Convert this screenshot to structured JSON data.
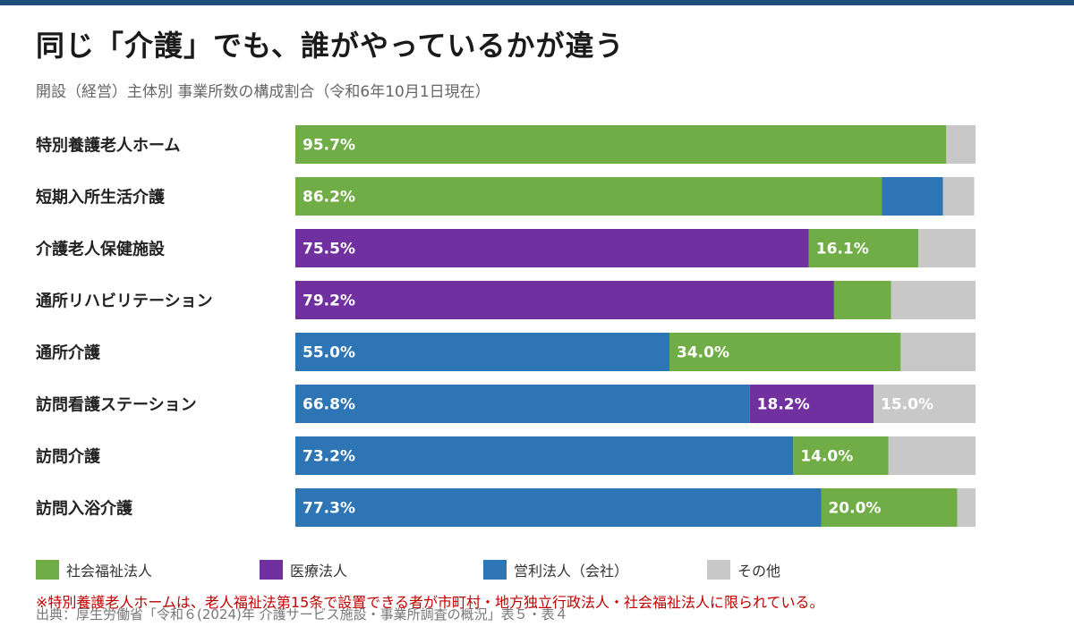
{
  "title": "同じ「介護」でも、誰がやっているかが違う",
  "subtitle": "開設（経営）主体別 事業所数の構成割合（令和6年10月1日現在）",
  "colors": {
    "social_welfare": "#70ad47",
    "medical": "#7030a0",
    "company": "#2e75b6",
    "other": "#c8c8c8",
    "topbar": "#1f4e79",
    "note": "#c00000"
  },
  "legend": [
    {
      "key": "social_welfare",
      "label": "社会福祉法人",
      "color": "#70ad47"
    },
    {
      "key": "medical",
      "label": "医療法人",
      "color": "#7030a0"
    },
    {
      "key": "company",
      "label": "営利法人（会社）",
      "color": "#2e75b6"
    },
    {
      "key": "other",
      "label": "その他",
      "color": "#c8c8c8"
    }
  ],
  "chart_data": {
    "type": "bar",
    "orientation": "horizontal",
    "stacked": true,
    "xlim": [
      0,
      100
    ],
    "unit": "%",
    "categories": [
      "特別養護老人ホーム",
      "短期入所生活介護",
      "介護老人保健施設",
      "通所リハビリテーション",
      "通所介護",
      "訪問看護ステーション",
      "訪問介護",
      "訪問入浴介護"
    ],
    "rows": [
      {
        "segments": [
          {
            "series": "社会福祉法人",
            "value": 95.7,
            "label": "95.7%"
          },
          {
            "series": "その他",
            "value": 4.3,
            "label": ""
          }
        ]
      },
      {
        "segments": [
          {
            "series": "社会福祉法人",
            "value": 86.2,
            "label": "86.2%"
          },
          {
            "series": "営利法人（会社）",
            "value": 9.0,
            "label": ""
          },
          {
            "series": "その他",
            "value": 4.6,
            "label": ""
          }
        ]
      },
      {
        "segments": [
          {
            "series": "医療法人",
            "value": 75.5,
            "label": "75.5%"
          },
          {
            "series": "社会福祉法人",
            "value": 16.1,
            "label": "16.1%"
          },
          {
            "series": "その他",
            "value": 8.4,
            "label": ""
          }
        ]
      },
      {
        "segments": [
          {
            "series": "医療法人",
            "value": 79.2,
            "label": "79.2%"
          },
          {
            "series": "社会福祉法人",
            "value": 8.4,
            "label": ""
          },
          {
            "series": "その他",
            "value": 12.4,
            "label": ""
          }
        ]
      },
      {
        "segments": [
          {
            "series": "営利法人（会社）",
            "value": 55.0,
            "label": "55.0%"
          },
          {
            "series": "社会福祉法人",
            "value": 34.0,
            "label": "34.0%"
          },
          {
            "series": "その他",
            "value": 11.0,
            "label": ""
          }
        ]
      },
      {
        "segments": [
          {
            "series": "営利法人（会社）",
            "value": 66.8,
            "label": "66.8%"
          },
          {
            "series": "医療法人",
            "value": 18.2,
            "label": "18.2%"
          },
          {
            "series": "その他",
            "value": 15.0,
            "label": "15.0%"
          }
        ]
      },
      {
        "segments": [
          {
            "series": "営利法人（会社）",
            "value": 73.2,
            "label": "73.2%"
          },
          {
            "series": "社会福祉法人",
            "value": 14.0,
            "label": "14.0%"
          },
          {
            "series": "その他",
            "value": 12.8,
            "label": ""
          }
        ]
      },
      {
        "segments": [
          {
            "series": "営利法人（会社）",
            "value": 77.3,
            "label": "77.3%"
          },
          {
            "series": "社会福祉法人",
            "value": 20.0,
            "label": "20.0%"
          },
          {
            "series": "その他",
            "value": 2.7,
            "label": ""
          }
        ]
      }
    ]
  },
  "note": "※特別養護老人ホームは、老人福祉法第15条で設置できる者が市町村・地方独立行政法人・社会福祉法人に限られている。",
  "source": "出典：厚生労働省「令和６(2024)年 介護サービス施設・事業所調査の概況」表５・表４"
}
